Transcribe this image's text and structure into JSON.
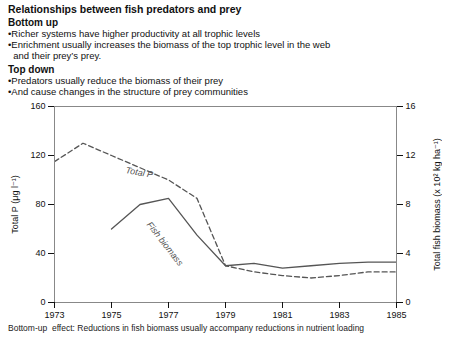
{
  "chart_data": {
    "type": "line",
    "title": "Relationships between fish predators and prey",
    "subtitle": [
      {
        "header": "Bottom up",
        "bullets": [
          "•Richer systems have higher productivity at all trophic levels",
          "•Enrichment usually increases the biomass of the top trophic level in the web\n  and their prey’s prey."
        ]
      },
      {
        "header": "Top down",
        "bullets": [
          "•Predators usually reduce the biomass of their prey",
          "•And cause changes in the structure of prey communities"
        ]
      }
    ],
    "caption": "Bottom-up  effect: Reductions in fish biomass usually accompany reductions in nutrient loading",
    "x": [
      1973,
      1974,
      1975,
      1976,
      1977,
      1978,
      1979,
      1980,
      1981,
      1982,
      1983,
      1984,
      1985
    ],
    "series": [
      {
        "name": "Total P",
        "color": "#555555",
        "line_style": "dashed",
        "values": [
          115,
          130,
          120,
          110,
          100,
          85,
          30,
          25,
          22,
          20,
          22,
          25,
          25
        ]
      },
      {
        "name": "Fish biomass",
        "color": "#555555",
        "line_style": "solid",
        "values": [
          null,
          null,
          60,
          80,
          85,
          55,
          30,
          32,
          28,
          30,
          32,
          33,
          33
        ]
      }
    ],
    "annotations": [
      {
        "text": "Total P",
        "x": 1975.5,
        "y": 108
      },
      {
        "text": "Fish biomass",
        "x": 1976.3,
        "y": 65
      }
    ],
    "xlim": [
      1973,
      1985
    ],
    "xticks": [
      1973,
      1975,
      1977,
      1979,
      1981,
      1983,
      1985
    ],
    "ylim": [
      0,
      160
    ],
    "yticks": [
      0,
      40,
      80,
      120,
      160
    ],
    "ylabel": "Total P (μg l⁻¹)",
    "y2lim": [
      0,
      16
    ],
    "y2ticks": [
      0,
      4,
      8,
      12,
      16
    ],
    "y2label": "Total fish biomass (x 10² kg ha⁻¹)",
    "grid": false
  }
}
